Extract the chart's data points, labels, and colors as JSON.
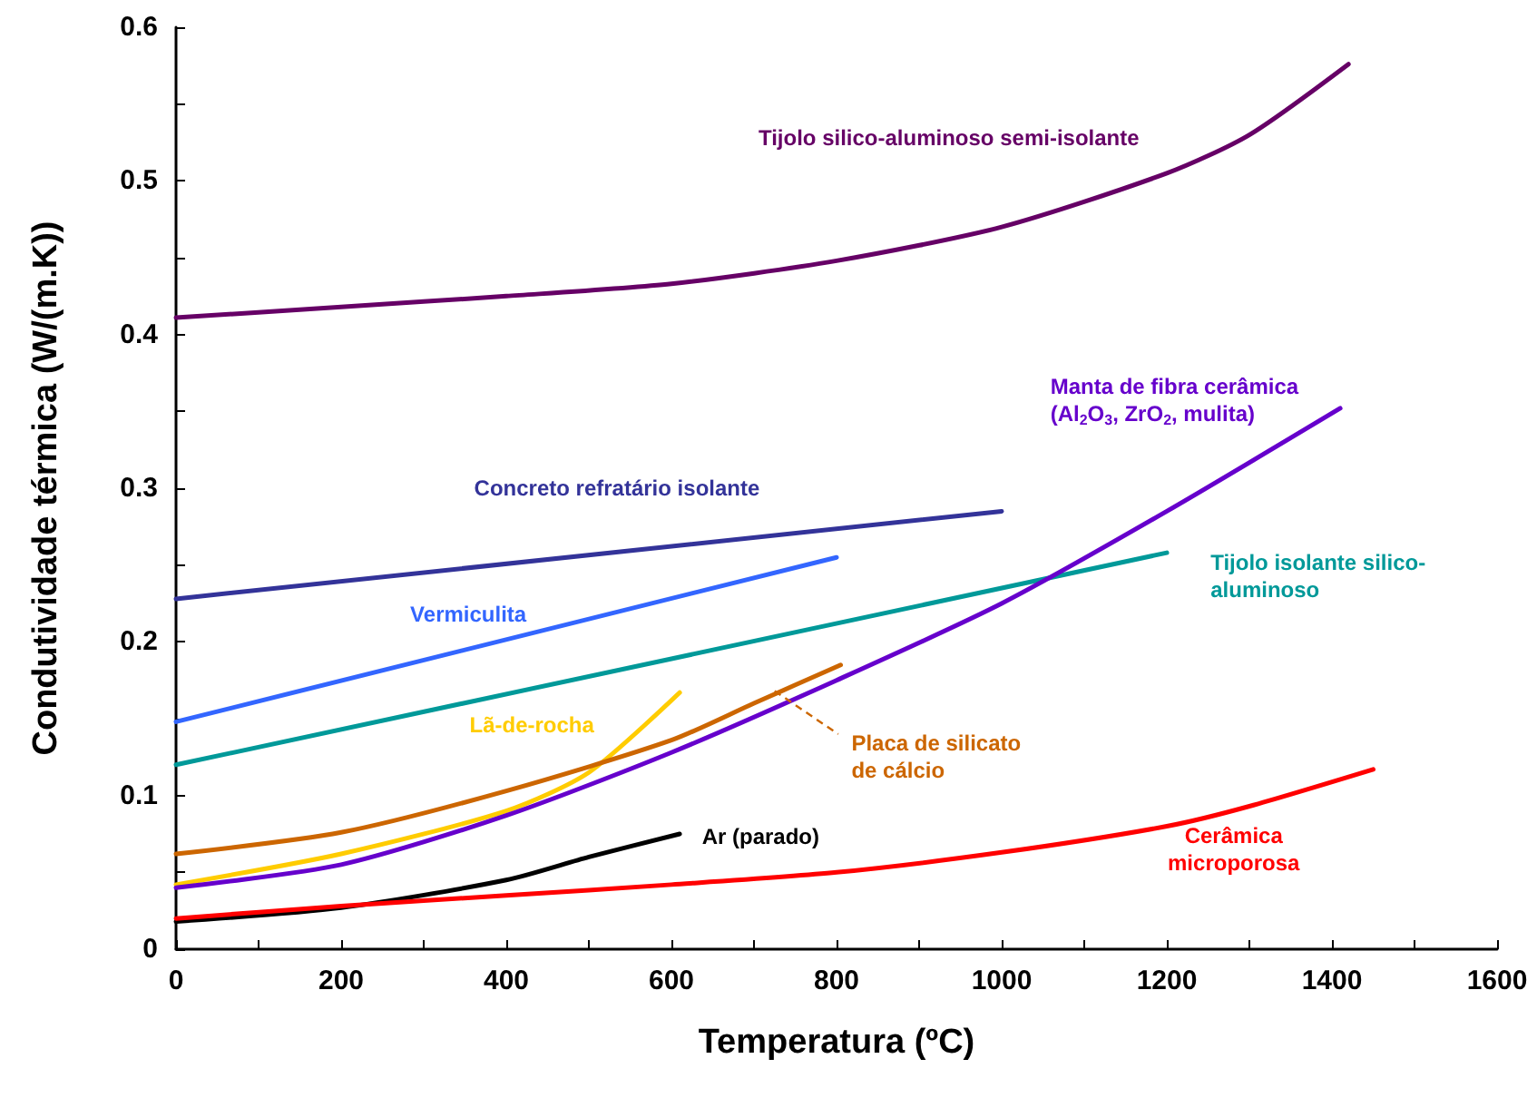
{
  "chart_data": {
    "type": "line",
    "xlabel": "Temperatura (ºC)",
    "ylabel": "Condutividade térmica (W/(m.K))",
    "xlim": [
      0,
      1600
    ],
    "xticks": [
      0,
      {
        "value": 100,
        "label": null
      },
      200,
      {
        "value": 300,
        "label": null
      },
      400,
      {
        "value": 500,
        "label": null
      },
      600,
      {
        "value": 700,
        "label": null
      },
      800,
      {
        "value": 900,
        "label": null
      },
      1000,
      {
        "value": 1100,
        "label": null
      },
      1200,
      {
        "value": 1300,
        "label": null
      },
      1400,
      {
        "value": 1500,
        "label": null
      },
      1600
    ],
    "ylim": [
      0,
      0.6
    ],
    "yticks": [
      0,
      {
        "value": 0.05,
        "label": null
      },
      0.1,
      {
        "value": 0.15,
        "label": null
      },
      0.2,
      {
        "value": 0.25,
        "label": null
      },
      0.3,
      {
        "value": 0.35,
        "label": null
      },
      0.4,
      {
        "value": 0.45,
        "label": null
      },
      0.5,
      {
        "value": 0.55,
        "label": null
      },
      0.6
    ],
    "grid": false,
    "legend": false,
    "marker": "none",
    "line_style": "solid",
    "series": [
      {
        "name": "Tijolo silico-aluminoso semi-isolante",
        "color": "#660066",
        "x": [
          0,
          200,
          400,
          600,
          800,
          1000,
          1200,
          1300,
          1420
        ],
        "values": [
          0.411,
          0.418,
          0.425,
          0.433,
          0.448,
          0.47,
          0.505,
          0.53,
          0.576
        ]
      },
      {
        "name": "Concreto refratário isolante",
        "color": "#333399",
        "x": [
          0,
          1000
        ],
        "values": [
          0.228,
          0.285
        ]
      },
      {
        "name": "Vermiculita",
        "color": "#3366ff",
        "x": [
          0,
          800
        ],
        "values": [
          0.148,
          0.255
        ]
      },
      {
        "name": "Tijolo isolante silico-\naluminoso",
        "color": "#009999",
        "x": [
          0,
          1200
        ],
        "values": [
          0.12,
          0.258
        ]
      },
      {
        "name": "Lã-de-rocha",
        "color": "#ffcc00",
        "x": [
          0,
          200,
          400,
          500,
          610
        ],
        "values": [
          0.042,
          0.062,
          0.09,
          0.115,
          0.167
        ]
      },
      {
        "name": "Placa de silicato\nde cálcio",
        "color": "#cc6600",
        "x": [
          0,
          200,
          400,
          600,
          700,
          805
        ],
        "values": [
          0.062,
          0.076,
          0.103,
          0.136,
          0.16,
          0.185
        ]
      },
      {
        "name": "Manta de fibra cerâmica\n(Al$_{2}$O$_{3}$, ZrO$_{2}$, mulita)",
        "color": "#6600cc",
        "x": [
          0,
          200,
          400,
          600,
          800,
          1000,
          1200,
          1410
        ],
        "values": [
          0.04,
          0.055,
          0.087,
          0.128,
          0.175,
          0.225,
          0.285,
          0.352
        ]
      },
      {
        "name": "Ar (parado)",
        "color": "#000000",
        "x": [
          0,
          200,
          400,
          500,
          610
        ],
        "values": [
          0.018,
          0.027,
          0.045,
          0.06,
          0.075
        ]
      },
      {
        "name": "Cerâmica\nmicroporosa",
        "color": "#ff0000",
        "x": [
          0,
          200,
          400,
          600,
          800,
          1000,
          1200,
          1300,
          1450
        ],
        "values": [
          0.02,
          0.028,
          0.035,
          0.042,
          0.05,
          0.063,
          0.08,
          0.093,
          0.117
        ]
      }
    ]
  }
}
